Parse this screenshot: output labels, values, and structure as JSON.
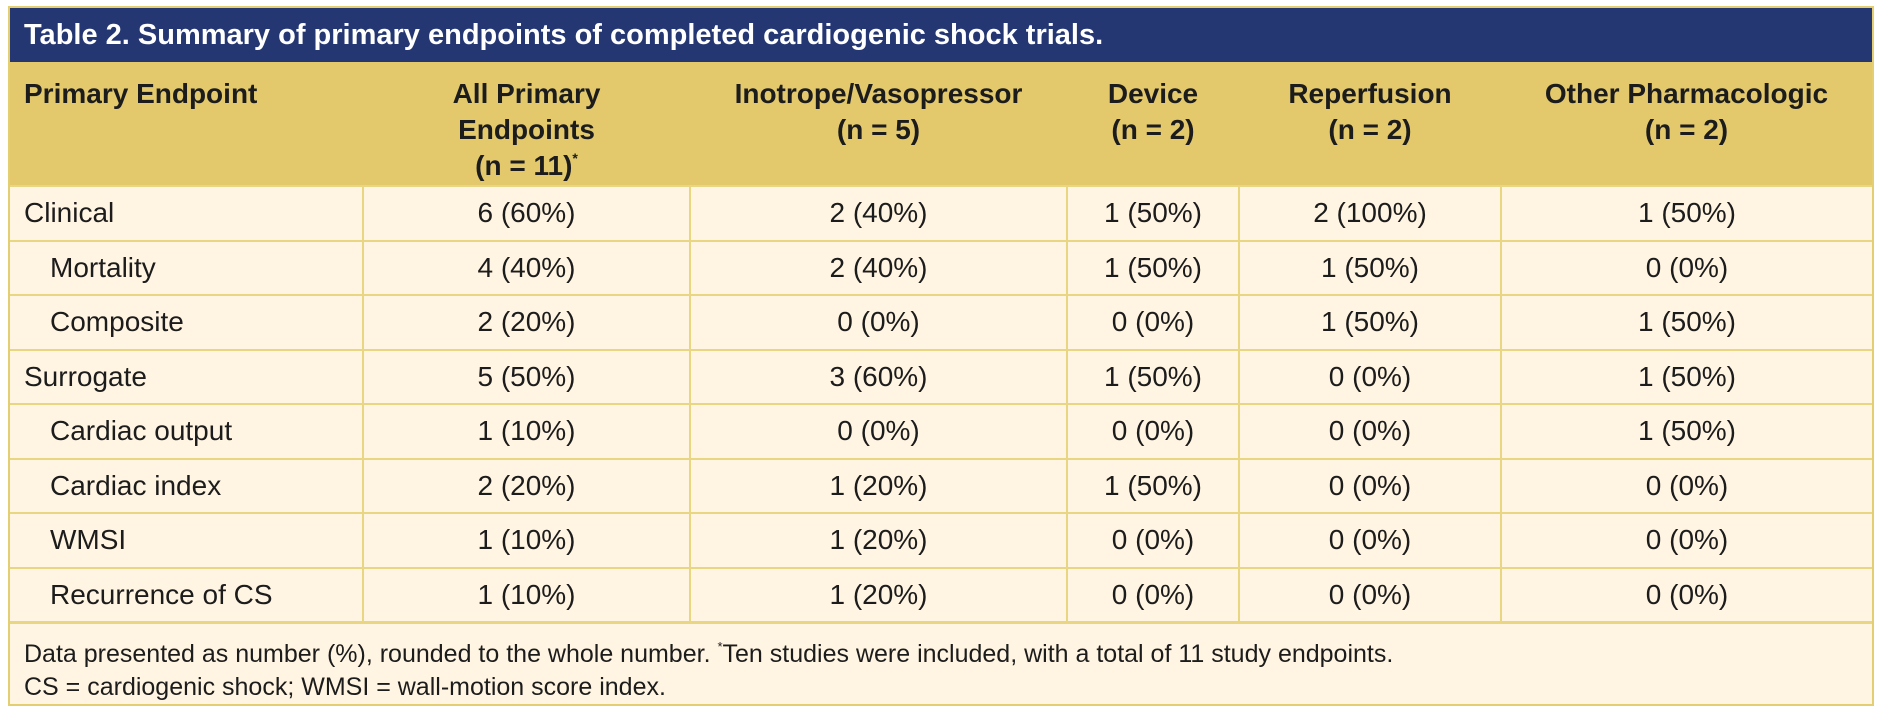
{
  "table": {
    "title": "Table 2. Summary of primary endpoints of completed cardiogenic shock trials.",
    "headers": [
      {
        "line1": "Primary Endpoint",
        "line2": "",
        "line3": ""
      },
      {
        "line1": "All Primary",
        "line2": "Endpoints",
        "line3": "(n = 11)",
        "mark": "*"
      },
      {
        "line1": "Inotrope/Vasopressor",
        "line2": "(n = 5)",
        "line3": ""
      },
      {
        "line1": "Device",
        "line2": "(n = 2)",
        "line3": ""
      },
      {
        "line1": "Reperfusion",
        "line2": "(n = 2)",
        "line3": ""
      },
      {
        "line1": "Other Pharmacologic",
        "line2": "(n = 2)",
        "line3": ""
      }
    ],
    "rows": [
      {
        "label": "Clinical",
        "sub": false,
        "cells": [
          "6 (60%)",
          "2 (40%)",
          "1 (50%)",
          "2 (100%)",
          "1 (50%)"
        ]
      },
      {
        "label": "Mortality",
        "sub": true,
        "cells": [
          "4 (40%)",
          "2 (40%)",
          "1 (50%)",
          "1 (50%)",
          "0 (0%)"
        ]
      },
      {
        "label": "Composite",
        "sub": true,
        "cells": [
          "2 (20%)",
          "0 (0%)",
          "0 (0%)",
          "1 (50%)",
          "1 (50%)"
        ]
      },
      {
        "label": "Surrogate",
        "sub": false,
        "cells": [
          "5 (50%)",
          "3 (60%)",
          "1 (50%)",
          "0 (0%)",
          "1 (50%)"
        ]
      },
      {
        "label": "Cardiac output",
        "sub": true,
        "cells": [
          "1 (10%)",
          "0 (0%)",
          "0 (0%)",
          "0 (0%)",
          "1 (50%)"
        ]
      },
      {
        "label": "Cardiac index",
        "sub": true,
        "cells": [
          "2 (20%)",
          "1 (20%)",
          "1 (50%)",
          "0 (0%)",
          "0 (0%)"
        ]
      },
      {
        "label": "WMSI",
        "sub": true,
        "cells": [
          "1 (10%)",
          "1 (20%)",
          "0 (0%)",
          "0 (0%)",
          "0 (0%)"
        ]
      },
      {
        "label": "Recurrence of CS",
        "sub": true,
        "cells": [
          "1 (10%)",
          "1 (20%)",
          "0 (0%)",
          "0 (0%)",
          "0 (0%)"
        ]
      }
    ],
    "footnote": {
      "line1_a": "Data presented as number (%), rounded to the whole number. ",
      "line1_mark": "*",
      "line1_b": "Ten studies were included, with a total of 11 study endpoints.",
      "line2": "CS = cardiogenic shock; WMSI = wall-motion score index."
    }
  },
  "colors": {
    "title_bar": "#253773",
    "header_bg": "#e3c96b",
    "body_bg": "#fff5e2",
    "grid": "#e8d683"
  }
}
